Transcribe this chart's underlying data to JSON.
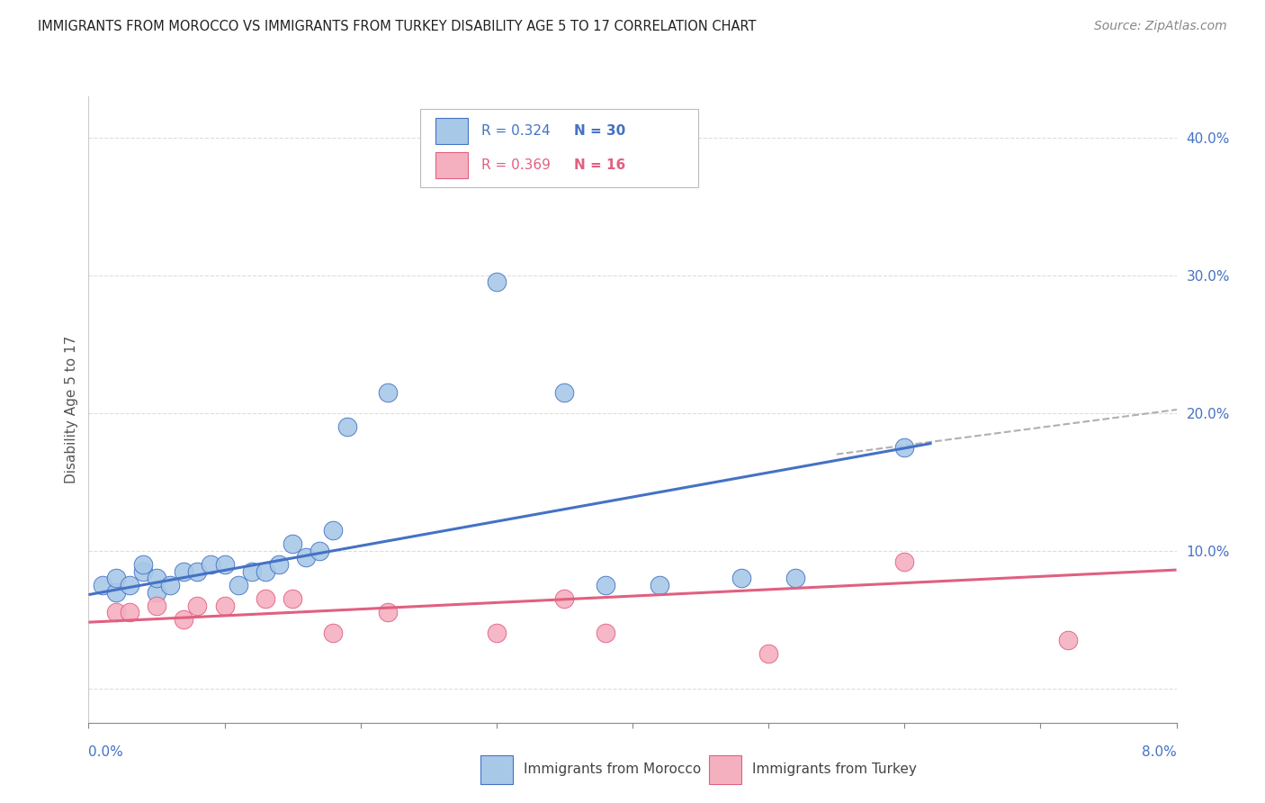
{
  "title": "IMMIGRANTS FROM MOROCCO VS IMMIGRANTS FROM TURKEY DISABILITY AGE 5 TO 17 CORRELATION CHART",
  "source": "Source: ZipAtlas.com",
  "ylabel": "Disability Age 5 to 17",
  "R_morocco": "R = 0.324",
  "N_morocco": "N = 30",
  "R_turkey": "R = 0.369",
  "N_turkey": "N = 16",
  "legend_morocco": "Immigrants from Morocco",
  "legend_turkey": "Immigrants from Turkey",
  "color_morocco": "#a8c8e8",
  "color_turkey": "#f5b0c0",
  "line_color_morocco": "#4472c4",
  "line_color_turkey": "#e06080",
  "line_color_dashed": "#b0b0b0",
  "xlim": [
    0.0,
    0.08
  ],
  "ylim": [
    -0.025,
    0.43
  ],
  "ytick_values": [
    0.0,
    0.1,
    0.2,
    0.3,
    0.4
  ],
  "ytick_labels": [
    "",
    "10.0%",
    "20.0%",
    "30.0%",
    "40.0%"
  ],
  "background_color": "#ffffff",
  "grid_color": "#dddddd",
  "morocco_x": [
    0.001,
    0.002,
    0.002,
    0.003,
    0.004,
    0.004,
    0.005,
    0.005,
    0.006,
    0.007,
    0.008,
    0.009,
    0.01,
    0.011,
    0.012,
    0.013,
    0.014,
    0.015,
    0.016,
    0.017,
    0.018,
    0.019,
    0.022,
    0.03,
    0.035,
    0.038,
    0.042,
    0.048,
    0.052,
    0.06
  ],
  "morocco_y": [
    0.075,
    0.07,
    0.08,
    0.075,
    0.085,
    0.09,
    0.07,
    0.08,
    0.075,
    0.085,
    0.085,
    0.09,
    0.09,
    0.075,
    0.085,
    0.085,
    0.09,
    0.105,
    0.095,
    0.1,
    0.115,
    0.19,
    0.215,
    0.295,
    0.215,
    0.075,
    0.075,
    0.08,
    0.08,
    0.175
  ],
  "turkey_x": [
    0.002,
    0.003,
    0.005,
    0.007,
    0.008,
    0.01,
    0.013,
    0.015,
    0.018,
    0.022,
    0.03,
    0.035,
    0.038,
    0.05,
    0.06,
    0.072
  ],
  "turkey_y": [
    0.055,
    0.055,
    0.06,
    0.05,
    0.06,
    0.06,
    0.065,
    0.065,
    0.04,
    0.055,
    0.04,
    0.065,
    0.04,
    0.025,
    0.092,
    0.035
  ],
  "morocco_line_x": [
    0.0,
    0.062
  ],
  "morocco_line_y": [
    0.068,
    0.178
  ],
  "turkey_line_x": [
    0.0,
    0.08
  ],
  "turkey_line_y": [
    0.048,
    0.086
  ],
  "dashed_line_x": [
    0.055,
    0.082
  ],
  "dashed_line_y": [
    0.17,
    0.205
  ]
}
